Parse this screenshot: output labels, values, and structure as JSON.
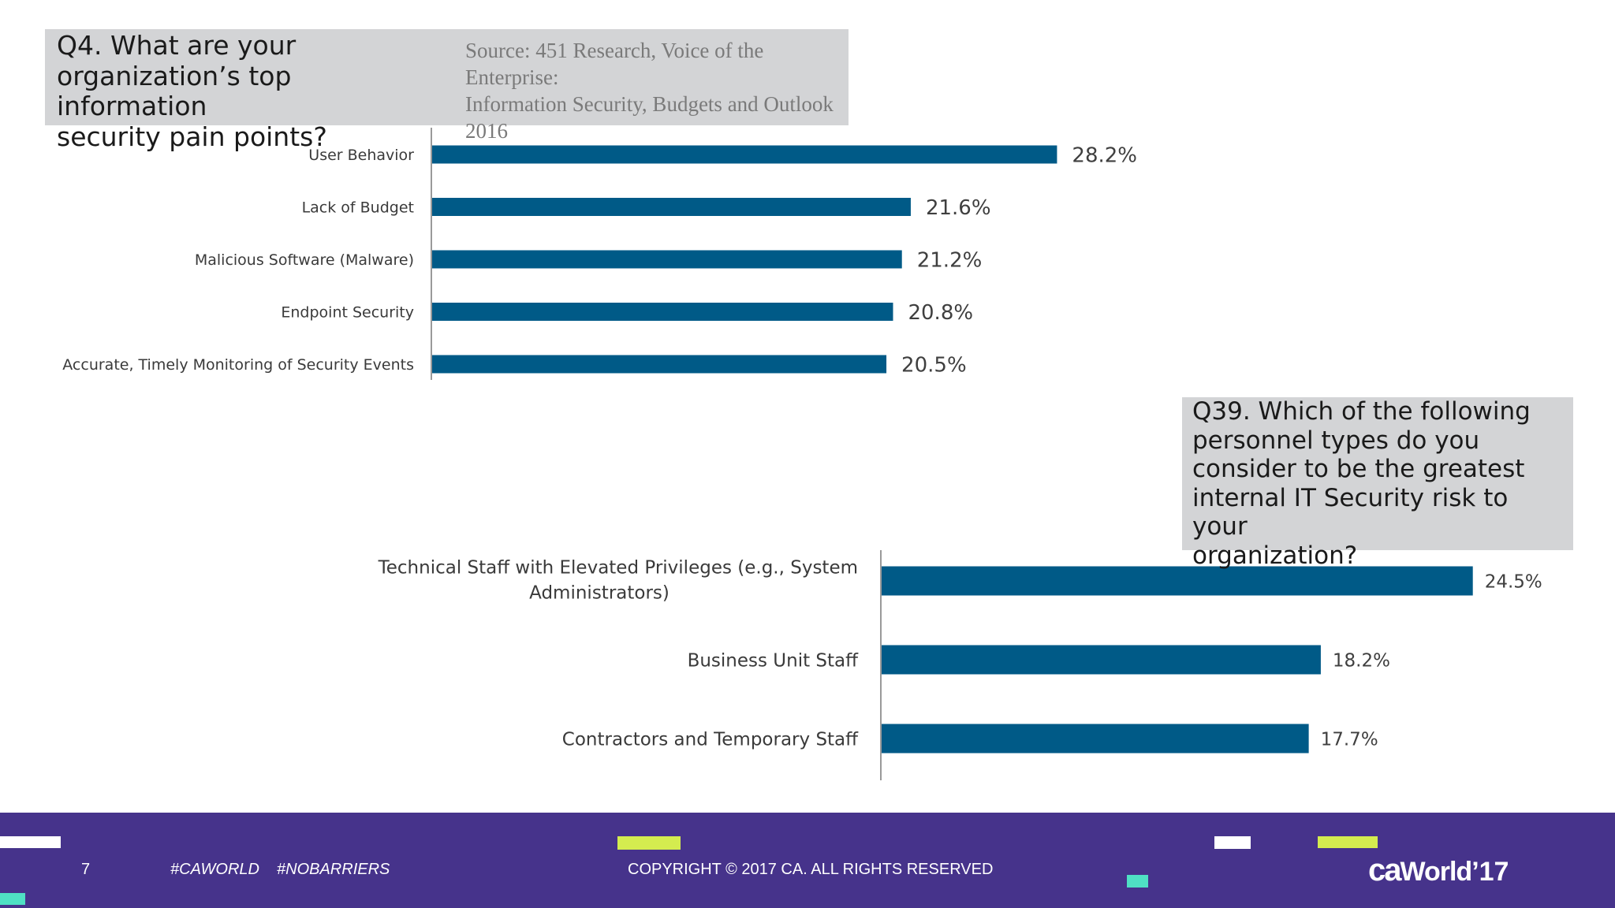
{
  "q4": {
    "title_lines": [
      "Q4. What are your",
      "organization’s top information",
      "security pain points?"
    ]
  },
  "source": {
    "lines": [
      "Source: 451 Research, Voice of the Enterprise:",
      "Information Security, Budgets and Outlook",
      "2016"
    ]
  },
  "q39": {
    "title_lines": [
      "Q39. Which of the following",
      "personnel types do you",
      "consider to be the greatest",
      "internal IT Security risk to your",
      "organization?"
    ]
  },
  "chart_data": [
    {
      "type": "bar",
      "orientation": "horizontal",
      "title": "Q4. What are your organization’s top information security pain points?",
      "categories": [
        "User Behavior",
        "Lack of Budget",
        "Malicious Software (Malware)",
        "Endpoint Security",
        "Accurate, Timely Monitoring of Security Events"
      ],
      "values": [
        28.2,
        21.6,
        21.2,
        20.8,
        20.5
      ],
      "labels": [
        "28.2%",
        "21.6%",
        "21.2%",
        "20.8%",
        "20.5%"
      ],
      "unit": "%",
      "color": "#005a87"
    },
    {
      "type": "bar",
      "orientation": "horizontal",
      "title": "Q39. Which of the following personnel types do you consider to be the greatest internal IT Security risk to your organization?",
      "categories": [
        "Technical Staff with Elevated Privileges (e.g., System Administrators)",
        "Business Unit Staff",
        "Contractors and Temporary Staff"
      ],
      "category_lines": [
        [
          "Technical Staff with Elevated Privileges (e.g., System",
          "Administrators)"
        ],
        [
          "Business Unit Staff"
        ],
        [
          "Contractors and Temporary Staff"
        ]
      ],
      "values": [
        24.5,
        18.2,
        17.7
      ],
      "labels": [
        "24.5%",
        "18.2%",
        "17.7%"
      ],
      "unit": "%",
      "color": "#005a87"
    }
  ],
  "footer": {
    "page_number": "7",
    "hashtag1": "#CAWORLD",
    "hashtag2": "#NOBARRIERS",
    "copyright": "COPYRIGHT © 2017 CA. ALL RIGHTS RESERVED",
    "logo_ca": "ca",
    "logo_world": "World",
    "logo_year": "’17",
    "background_color": "#46338b",
    "accent_lime": "#d4ec4f",
    "accent_teal": "#4fe0c4"
  }
}
